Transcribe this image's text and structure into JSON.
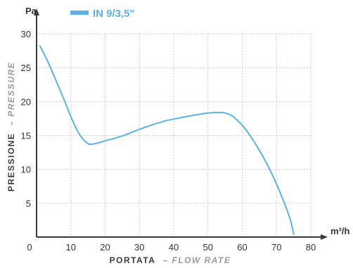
{
  "chart_data": {
    "type": "line",
    "x_unit": "m³/h",
    "y_unit": "Pa",
    "xlabel": "PORTATA",
    "xlabel_sub": "– FLOW RATE",
    "ylabel": "PRESSIONE",
    "ylabel_sub": "– PRESSURE",
    "xlim": [
      0,
      80
    ],
    "ylim": [
      0,
      30
    ],
    "x_ticks": [
      0,
      10,
      20,
      30,
      40,
      50,
      60,
      70,
      80
    ],
    "y_ticks": [
      5,
      10,
      15,
      20,
      25,
      30
    ],
    "grid": true,
    "legend_position": "top-left",
    "series": [
      {
        "name": "IN 9/3,5\"",
        "color": "#5ab3e4",
        "x": [
          1,
          3,
          5,
          8,
          11,
          13,
          15,
          16,
          18,
          20,
          23,
          26,
          30,
          34,
          38,
          42,
          46,
          50,
          53,
          55,
          57,
          58,
          60,
          62,
          65,
          68,
          70,
          72,
          74,
          75
        ],
        "y": [
          28.2,
          26.2,
          23.9,
          20.3,
          16.6,
          14.8,
          13.8,
          13.7,
          13.9,
          14.2,
          14.6,
          15.1,
          15.9,
          16.6,
          17.2,
          17.6,
          18.0,
          18.3,
          18.4,
          18.3,
          17.9,
          17.5,
          16.5,
          15.2,
          12.8,
          10.0,
          7.8,
          5.4,
          2.6,
          0.4
        ]
      }
    ]
  }
}
